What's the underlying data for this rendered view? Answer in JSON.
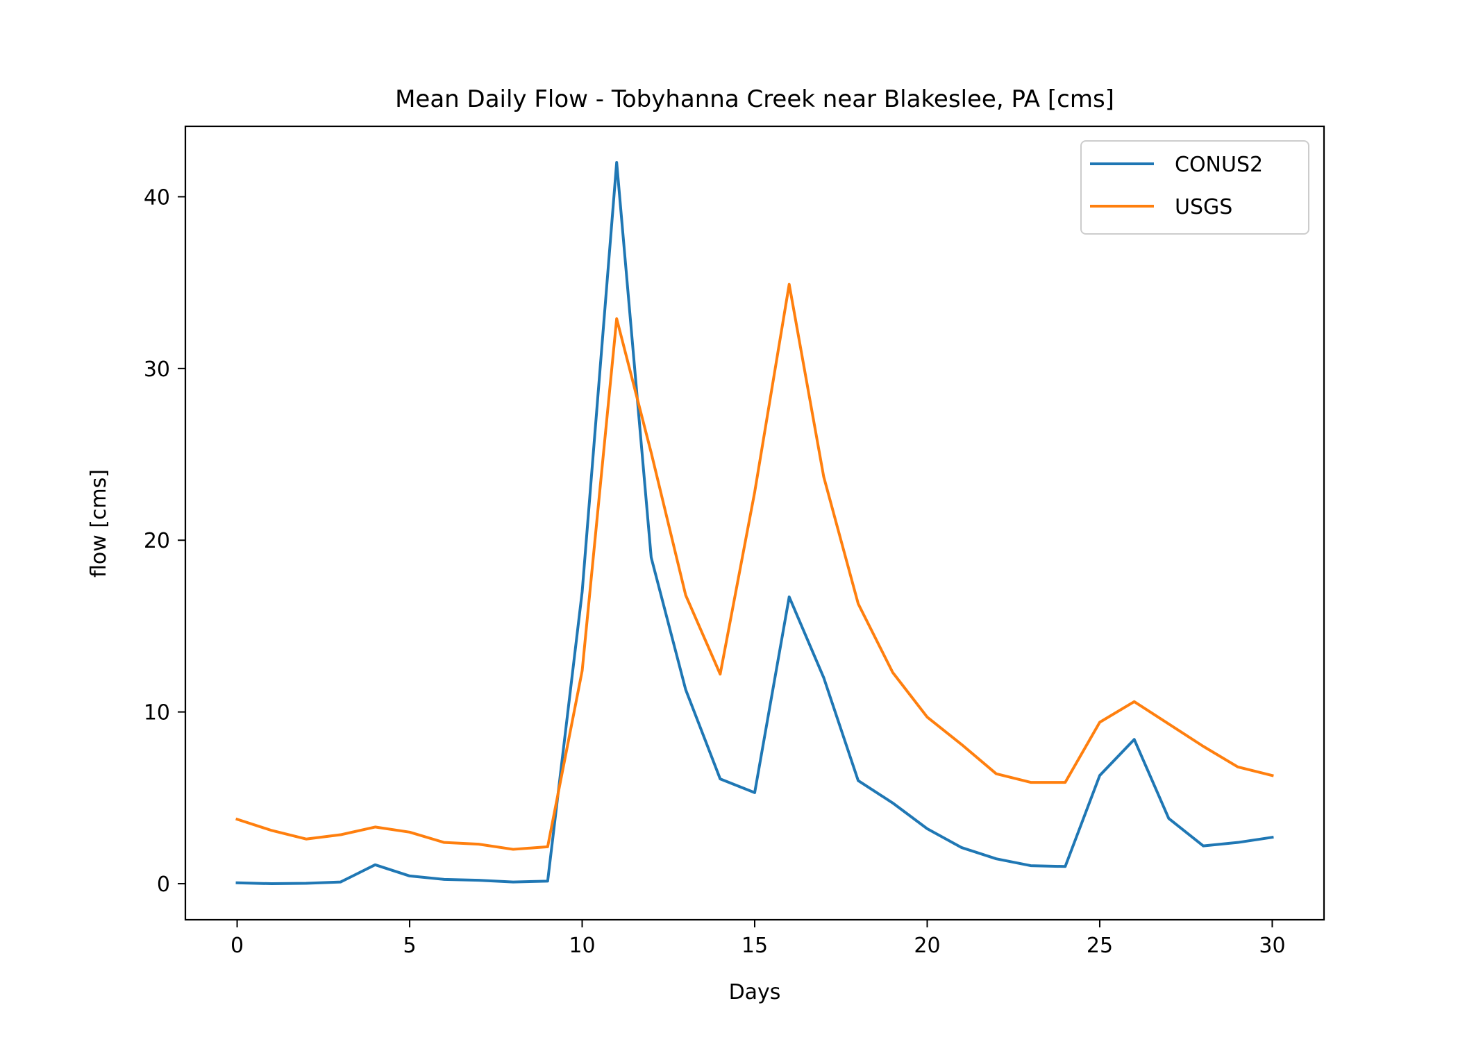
{
  "chart_data": {
    "type": "line",
    "title": "Mean Daily Flow - Tobyhanna Creek near Blakeslee, PA [cms]",
    "xlabel": "Days",
    "ylabel": "flow [cms]",
    "xlim": [
      -1.5,
      31.5
    ],
    "ylim": [
      -2.1,
      44.1
    ],
    "xticks": [
      0,
      5,
      10,
      15,
      20,
      25,
      30
    ],
    "yticks": [
      0,
      10,
      20,
      30,
      40
    ],
    "grid": false,
    "legend_position": "upper right",
    "x": [
      0,
      1,
      2,
      3,
      4,
      5,
      6,
      7,
      8,
      9,
      10,
      11,
      12,
      13,
      14,
      15,
      16,
      17,
      18,
      19,
      20,
      21,
      22,
      23,
      24,
      25,
      26,
      27,
      28,
      29,
      30
    ],
    "series": [
      {
        "name": "CONUS2",
        "color": "#1f77b4",
        "values": [
          0.05,
          0.0,
          0.02,
          0.1,
          1.1,
          0.45,
          0.25,
          0.2,
          0.1,
          0.15,
          17.0,
          42.0,
          19.0,
          11.3,
          6.1,
          5.3,
          16.7,
          12.0,
          6.0,
          4.7,
          3.2,
          2.1,
          1.45,
          1.05,
          1.0,
          6.3,
          8.4,
          3.8,
          2.2,
          2.4,
          2.7
        ]
      },
      {
        "name": "USGS",
        "color": "#ff7f0e",
        "values": [
          3.75,
          3.1,
          2.6,
          2.85,
          3.3,
          3.0,
          2.4,
          2.3,
          2.0,
          2.15,
          12.4,
          32.9,
          25.1,
          16.8,
          12.2,
          22.8,
          34.9,
          23.7,
          16.3,
          12.3,
          9.7,
          8.1,
          6.4,
          5.9,
          5.9,
          9.4,
          10.6,
          9.3,
          8.0,
          6.8,
          6.3
        ]
      }
    ]
  }
}
